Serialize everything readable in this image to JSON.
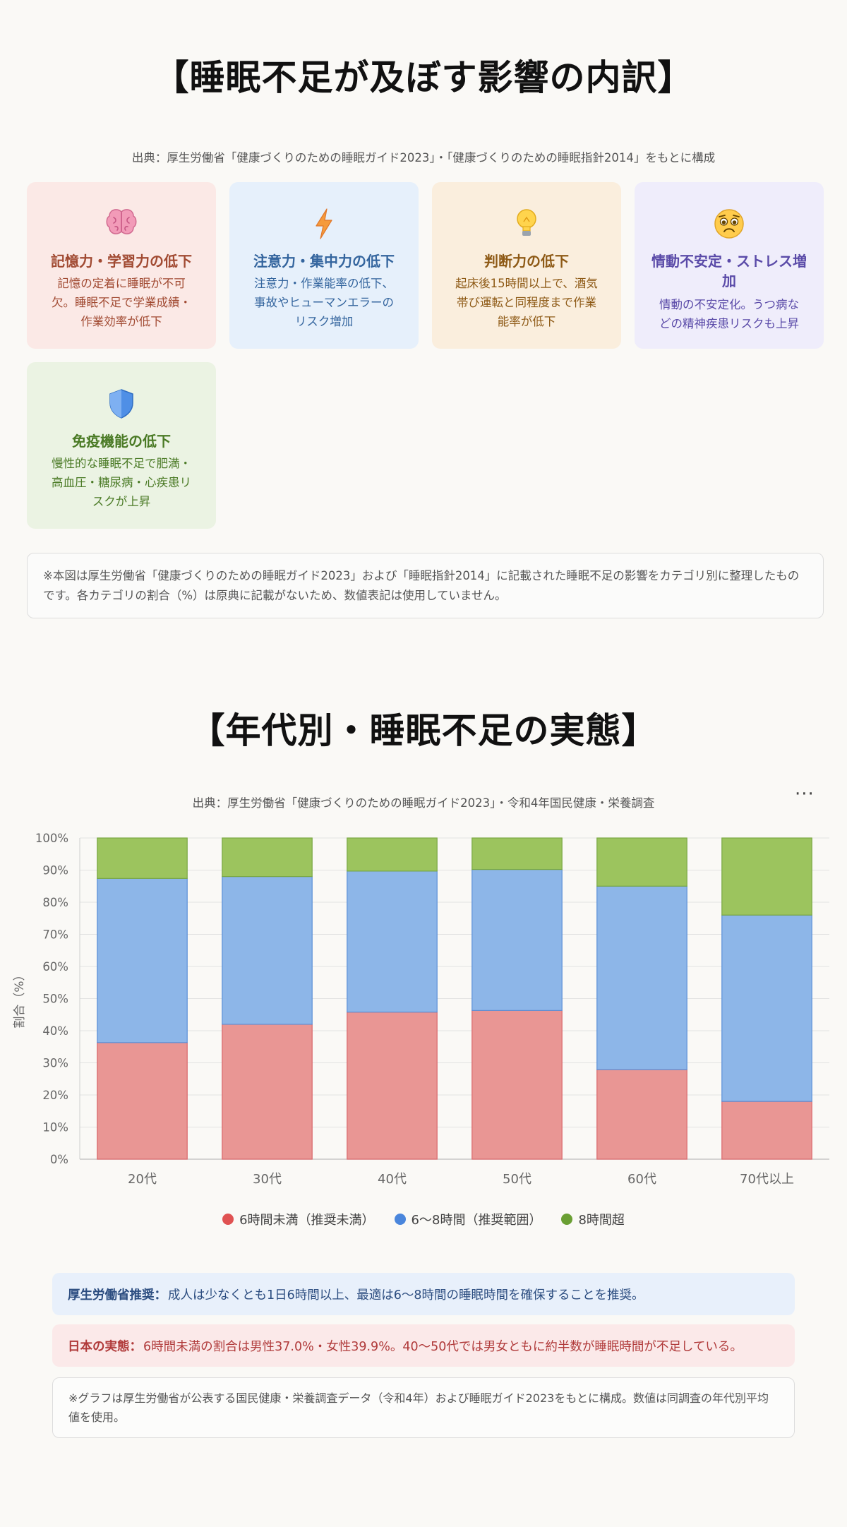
{
  "section1": {
    "title": "【睡眠不足が及ぼす影響の内訳】",
    "source": "出典：厚生労働省「健康づくりのための睡眠ガイド2023」・「健康づくりのための睡眠指針2014」をもとに構成",
    "cards": [
      {
        "icon": "brain-icon",
        "title": "記憶力・学習力の低下",
        "desc": [
          "記憶の定着に睡眠が不可",
          "欠。睡眠不足で学業成績・",
          "作業効率が低下"
        ],
        "bg": "#fbe9e6",
        "color": "#a14a32"
      },
      {
        "icon": "lightning-icon",
        "title": "注意力・集中力の低下",
        "desc": [
          "注意力・作業能率の低下、",
          "事故やヒューマンエラーの",
          "リスク増加"
        ],
        "bg": "#e6f0fb",
        "color": "#34659e"
      },
      {
        "icon": "lightbulb-icon",
        "title": "判断力の低下",
        "desc": [
          "起床後15時間以上で、酒気",
          "帯び運転と同程度まで作業",
          "能率が低下"
        ],
        "bg": "#faeedd",
        "color": "#8e5a16"
      },
      {
        "icon": "anxious-face-icon",
        "title": "情動不安定・ストレス増加",
        "desc": [
          "情動の不安定化。うつ病な",
          "どの精神疾患リスクも上昇"
        ],
        "bg": "#efedfb",
        "color": "#5a4aa8"
      },
      {
        "icon": "shield-icon",
        "title": "免疫機能の低下",
        "desc": [
          "慢性的な睡眠不足で肥満・",
          "高血圧・糖尿病・心疾患リ",
          "スクが上昇"
        ],
        "bg": "#ebf3e3",
        "color": "#4a7a25"
      }
    ],
    "note": "※本図は厚生労働省「健康づくりのための睡眠ガイド2023」および「睡眠指針2014」に記載された睡眠不足の影響をカテゴリ別に整理したものです。各カテゴリの割合（%）は原典に記載がないため、数値表記は使用していません。"
  },
  "section2": {
    "title": "【年代別・睡眠不足の実態】",
    "source": "出典：厚生労働省「健康づくりのための睡眠ガイド2023」・令和4年国民健康・栄養調査",
    "menu": "···",
    "recommendation_label": "厚生労働省推奨：",
    "recommendation_text": "成人は少なくとも1日6時間以上、最適は6〜8時間の睡眠時間を確保することを推奨。",
    "actual_label": "日本の実態：",
    "actual_text": "6時間未満の割合は男性37.0%・女性39.9%。40〜50代では男女ともに約半数が睡眠時間が不足している。",
    "note": "※グラフは厚生労働省が公表する国民健康・栄養調査データ（令和4年）および睡眠ガイド2023をもとに構成。数値は同調査の年代別平均値を使用。"
  },
  "chart_data": {
    "type": "bar",
    "stacked": true,
    "categories": [
      "20代",
      "30代",
      "40代",
      "50代",
      "60代",
      "70代以上"
    ],
    "series": [
      {
        "name": "6時間未満（推奨未満）",
        "values": [
          36.3,
          42.0,
          45.8,
          46.3,
          27.9,
          18.0
        ],
        "color": "#e99694",
        "stroke": "#d9676b",
        "legend_color": "#e05252"
      },
      {
        "name": "6〜8時間（推奨範囲）",
        "values": [
          51.1,
          46.0,
          43.9,
          43.9,
          57.1,
          58.0
        ],
        "color": "#8db6e8",
        "stroke": "#5a8fd6",
        "legend_color": "#4a86dc"
      },
      {
        "name": "8時間超",
        "values": [
          12.6,
          12.0,
          10.3,
          9.8,
          15.0,
          24.0
        ],
        "color": "#9cc45e",
        "stroke": "#7aa843",
        "legend_color": "#6a9f33"
      }
    ],
    "ylabel": "割合（%）",
    "xlabel": "",
    "ylim": [
      0,
      100
    ],
    "yticks": [
      0,
      10,
      20,
      30,
      40,
      50,
      60,
      70,
      80,
      90,
      100
    ],
    "ytick_suffix": "%",
    "grid": true,
    "legend": "bottom"
  }
}
